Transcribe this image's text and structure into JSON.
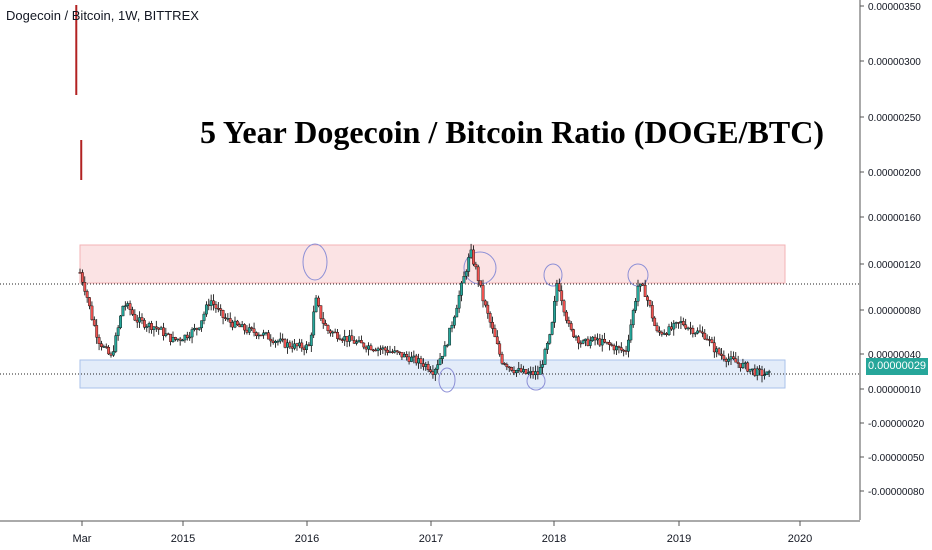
{
  "header": {
    "symbol_label": "Dogecoin / Bitcoin, 1W, BITTREX"
  },
  "annotation": {
    "title": "5 Year Dogecoin / Bitcoin Ratio (DOGE/BTC)"
  },
  "price_tag": {
    "value": "0.00000029",
    "color": "#26a69a"
  },
  "colors": {
    "up": "#26a69a",
    "down": "#ef5350",
    "candle_outline": "#000000",
    "resistance_zone": "#fbe3e4",
    "support_zone": "#e3ecf9",
    "circle": "#8c8fd6"
  },
  "chart_data": {
    "type": "candlestick",
    "title": "5 Year Dogecoin / Bitcoin Ratio (DOGE/BTC)",
    "x_tick_labels": [
      "Mar",
      "2015",
      "2016",
      "2017",
      "2018",
      "2019",
      "2020"
    ],
    "y_tick_labels": [
      "0.00000350",
      "0.00000300",
      "0.00000250",
      "0.00000200",
      "0.00000160",
      "0.00000120",
      "0.00000080",
      "0.00000040",
      "0.00000010",
      "-0.00000020",
      "-0.00000050",
      "-0.00000080"
    ],
    "y_scale": "log-like (percentage)",
    "last_price": "0.00000029",
    "x": [
      2014.15,
      2014.2,
      2014.25,
      2014.3,
      2014.35,
      2014.4,
      2014.45,
      2014.5,
      2014.55,
      2014.6,
      2014.65,
      2014.7,
      2014.75,
      2014.8,
      2014.85,
      2014.9,
      2014.95,
      2015.0,
      2015.1,
      2015.2,
      2015.3,
      2015.4,
      2015.5,
      2015.6,
      2015.7,
      2015.8,
      2015.9,
      2016.0,
      2016.05,
      2016.1,
      2016.15,
      2016.25,
      2016.4,
      2016.6,
      2016.8,
      2016.95,
      2017.0,
      2017.1,
      2017.2,
      2017.3,
      2017.35,
      2017.4,
      2017.45,
      2017.5,
      2017.55,
      2017.65,
      2017.75,
      2017.85,
      2017.95,
      2018.0,
      2018.05,
      2018.1,
      2018.15,
      2018.2,
      2018.3,
      2018.45,
      2018.55,
      2018.65,
      2018.7,
      2018.75,
      2018.8,
      2018.9,
      2019.0,
      2019.1,
      2019.2,
      2019.25,
      2019.3,
      2019.4,
      2019.5,
      2019.6,
      2019.7
    ],
    "y": [
      1.05,
      0.9,
      0.7,
      0.55,
      0.48,
      0.42,
      0.6,
      0.82,
      0.78,
      0.7,
      0.68,
      0.66,
      0.65,
      0.62,
      0.58,
      0.55,
      0.56,
      0.58,
      0.64,
      0.85,
      0.72,
      0.66,
      0.62,
      0.6,
      0.56,
      0.52,
      0.5,
      0.5,
      0.85,
      0.7,
      0.62,
      0.58,
      0.52,
      0.48,
      0.42,
      0.36,
      0.32,
      0.5,
      0.85,
      1.2,
      1.05,
      0.85,
      0.7,
      0.55,
      0.4,
      0.33,
      0.3,
      0.3,
      0.6,
      1.0,
      0.8,
      0.62,
      0.58,
      0.52,
      0.55,
      0.5,
      0.46,
      0.95,
      0.92,
      0.78,
      0.6,
      0.62,
      0.68,
      0.62,
      0.58,
      0.5,
      0.45,
      0.4,
      0.36,
      0.31,
      0.29
    ],
    "y_unit": "DOGE/BTC (relative, read from chart)"
  }
}
